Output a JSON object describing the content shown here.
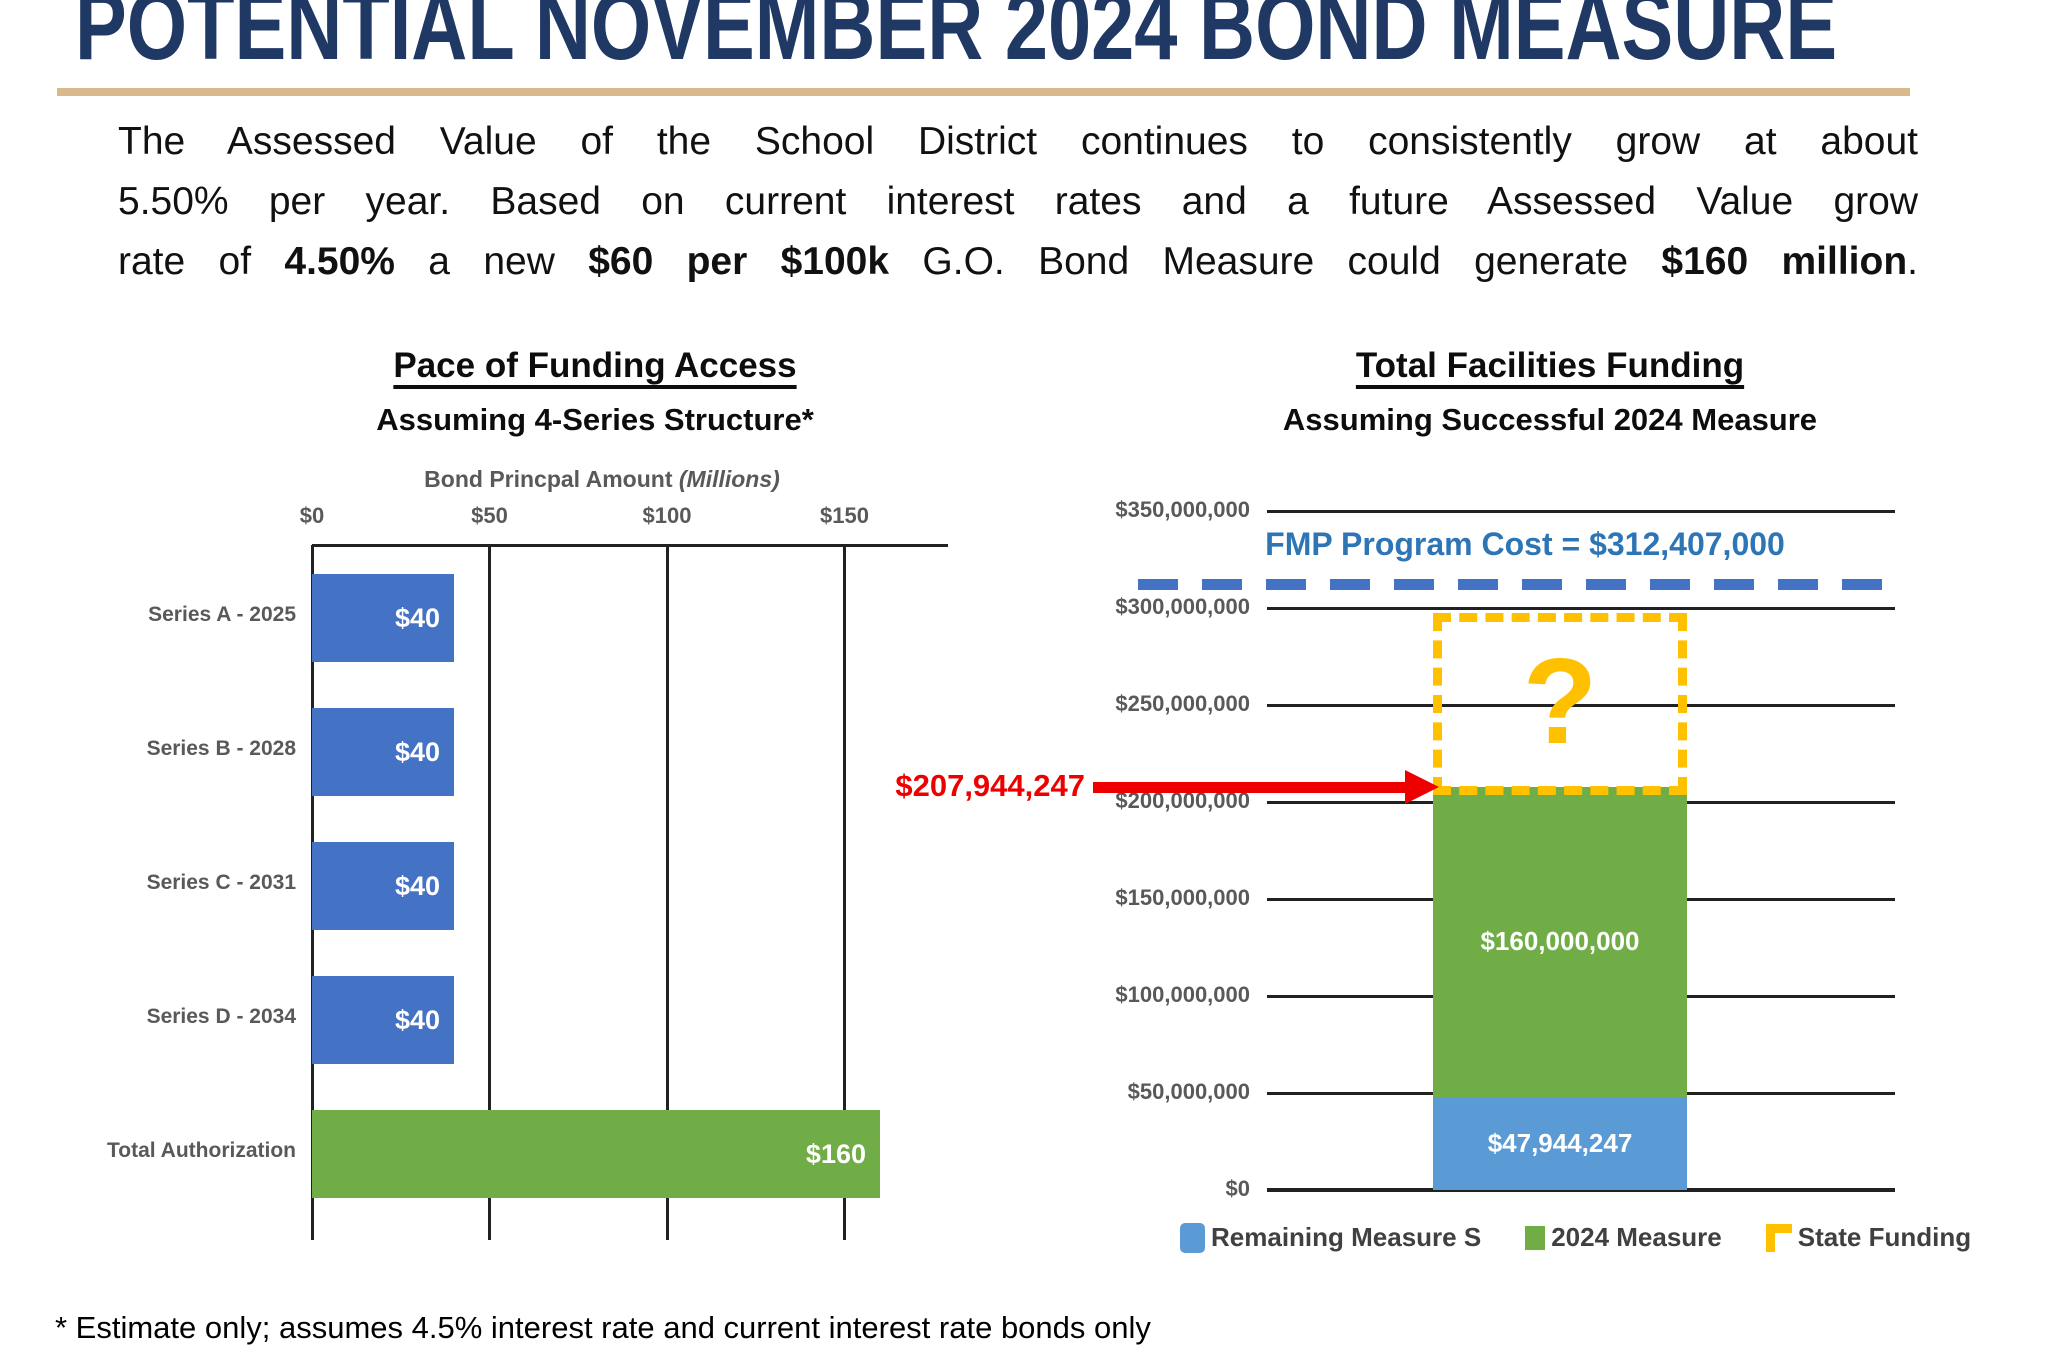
{
  "slide": {
    "title": "POTENTIAL NOVEMBER 2024 BOND MEASURE",
    "intro_paragraph": {
      "lines": [
        {
          "segments": [
            {
              "text": "The Assessed Value of the School District continues to consistently grow at about",
              "bold": false
            }
          ]
        },
        {
          "segments": [
            {
              "text": "5.50% per year. Based on current interest rates and a future Assessed Value grow",
              "bold": false
            }
          ]
        },
        {
          "segments": [
            {
              "text": "rate of ",
              "bold": false
            },
            {
              "text": "4.50%",
              "bold": true
            },
            {
              "text": " a new ",
              "bold": false
            },
            {
              "text": "$60 per $100k",
              "bold": true
            },
            {
              "text": " G.O. Bond Measure could generate ",
              "bold": false
            },
            {
              "text": "$160 million",
              "bold": true
            },
            {
              "text": ".",
              "bold": false
            }
          ]
        }
      ]
    },
    "footnote": "* Estimate only; assumes 4.5% interest rate and current interest rate bonds only",
    "accent_colors": {
      "title_navy": "#1F3864",
      "rule_tan": "#D8B88C"
    }
  },
  "chart_data": [
    {
      "id": "pace_of_funding",
      "type": "bar",
      "orientation": "horizontal",
      "title": "Pace of Funding Access",
      "subtitle": "Assuming 4-Series Structure*",
      "axis_title": "Bond Princpal Amount",
      "axis_title_note": "(Millions)",
      "xlim": [
        0,
        180
      ],
      "grid": true,
      "x_ticks": [
        {
          "label": "$0",
          "value": 0
        },
        {
          "label": "$50",
          "value": 50
        },
        {
          "label": "$100",
          "value": 100
        },
        {
          "label": "$150",
          "value": 150
        }
      ],
      "bars": [
        {
          "category": "Series A - 2025",
          "value": 40,
          "label": "$40",
          "color": "#4472C4"
        },
        {
          "category": "Series B - 2028",
          "value": 40,
          "label": "$40",
          "color": "#4472C4"
        },
        {
          "category": "Series C - 2031",
          "value": 40,
          "label": "$40",
          "color": "#4472C4"
        },
        {
          "category": "Series D - 2034",
          "value": 40,
          "label": "$40",
          "color": "#4472C4"
        },
        {
          "category": "Total Authorization",
          "value": 160,
          "label": "$160",
          "color": "#70AD47"
        }
      ]
    },
    {
      "id": "total_facilities_funding",
      "type": "stacked-bar",
      "orientation": "vertical",
      "title": "Total Facilities Funding",
      "subtitle": "Assuming Successful 2024 Measure",
      "ylim": [
        0,
        350000000
      ],
      "grid": true,
      "y_ticks": [
        {
          "label": "$0",
          "value": 0
        },
        {
          "label": "$50,000,000",
          "value": 50000000
        },
        {
          "label": "$100,000,000",
          "value": 100000000
        },
        {
          "label": "$150,000,000",
          "value": 150000000
        },
        {
          "label": "$200,000,000",
          "value": 200000000
        },
        {
          "label": "$250,000,000",
          "value": 250000000
        },
        {
          "label": "$300,000,000",
          "value": 300000000
        },
        {
          "label": "$350,000,000",
          "value": 350000000
        }
      ],
      "segments": [
        {
          "name": "Remaining Measure S",
          "value": 47944247,
          "label": "$47,944,247",
          "color": "#5B9BD5"
        },
        {
          "name": "2024 Measure",
          "value": 160000000,
          "label": "$160,000,000",
          "color": "#70AD47"
        }
      ],
      "stack_top_value": 207944247,
      "callout": {
        "text": "$207,944,247",
        "color": "#EE0000"
      },
      "reference_line": {
        "label": "FMP Program Cost = $312,407,000",
        "value": 312407000,
        "color": "#4472C4"
      },
      "state_funding_box": {
        "name": "State Funding",
        "placeholder": "?",
        "color": "#FFC000"
      },
      "legend": [
        {
          "label": "Remaining Measure S",
          "color": "#5B9BD5"
        },
        {
          "label": "2024 Measure",
          "color": "#70AD47"
        },
        {
          "label": "State Funding",
          "color": "#FFC000"
        }
      ],
      "legend_position": "bottom"
    }
  ]
}
